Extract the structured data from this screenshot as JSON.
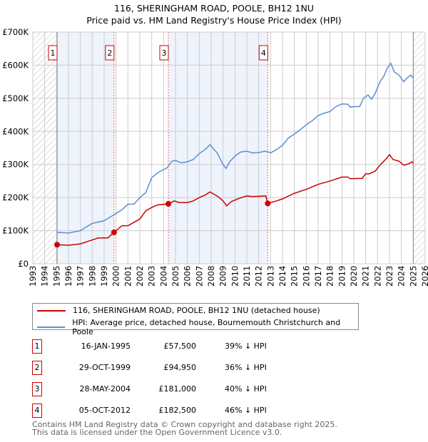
{
  "chart_data": {
    "type": "line",
    "title": "116, SHERINGHAM ROAD, POOLE, BH12 1NU",
    "subtitle": "Price paid vs. HM Land Registry's House Price Index (HPI)",
    "xlim": [
      1993,
      2026
    ],
    "ylim": [
      0,
      700000
    ],
    "x_ticks": [
      "1993",
      "1994",
      "1995",
      "1996",
      "1997",
      "1998",
      "1999",
      "2000",
      "2001",
      "2002",
      "2003",
      "2004",
      "2005",
      "2006",
      "2007",
      "2008",
      "2009",
      "2010",
      "2011",
      "2012",
      "2013",
      "2014",
      "2015",
      "2016",
      "2017",
      "2018",
      "2019",
      "2020",
      "2021",
      "2022",
      "2023",
      "2024",
      "2025",
      "2026"
    ],
    "y_ticks": [
      {
        "v": 0,
        "label": "£0"
      },
      {
        "v": 100000,
        "label": "£100K"
      },
      {
        "v": 200000,
        "label": "£200K"
      },
      {
        "v": 300000,
        "label": "£300K"
      },
      {
        "v": 400000,
        "label": "£400K"
      },
      {
        "v": 500000,
        "label": "£500K"
      },
      {
        "v": 600000,
        "label": "£600K"
      },
      {
        "v": 700000,
        "label": "£700K"
      }
    ],
    "grid": true,
    "hatched_ranges": [
      [
        1993,
        1995.04
      ],
      [
        2025.0,
        2026
      ]
    ],
    "shaded_ranges": [
      [
        1995.04,
        1999.83
      ],
      [
        2004.4,
        2012.76
      ]
    ],
    "series": [
      {
        "name": "116, SHERINGHAM ROAD, POOLE, BH12 1NU (detached house)",
        "color": "#cc0000",
        "points": [
          [
            1995.04,
            57.5
          ],
          [
            1996,
            56
          ],
          [
            1997,
            60
          ],
          [
            1998,
            72
          ],
          [
            1998.5,
            78
          ],
          [
            1999.3,
            78
          ],
          [
            1999.83,
            95
          ],
          [
            2000.5,
            115
          ],
          [
            2001,
            115
          ],
          [
            2001.5,
            125
          ],
          [
            2002,
            135
          ],
          [
            2002.5,
            160
          ],
          [
            2003,
            170
          ],
          [
            2003.5,
            178
          ],
          [
            2004.4,
            181
          ],
          [
            2004.9,
            190
          ],
          [
            2005.3,
            185
          ],
          [
            2006,
            185
          ],
          [
            2006.5,
            190
          ],
          [
            2007,
            200
          ],
          [
            2007.5,
            208
          ],
          [
            2007.9,
            217
          ],
          [
            2008.5,
            205
          ],
          [
            2009,
            190
          ],
          [
            2009.3,
            175
          ],
          [
            2009.7,
            188
          ],
          [
            2010.3,
            197
          ],
          [
            2011,
            205
          ],
          [
            2011.5,
            203
          ],
          [
            2012.6,
            205
          ],
          [
            2012.76,
            182.5
          ],
          [
            2013.5,
            190
          ],
          [
            2014,
            196
          ],
          [
            2015,
            213
          ],
          [
            2016,
            225
          ],
          [
            2017,
            240
          ],
          [
            2018,
            250
          ],
          [
            2019,
            262
          ],
          [
            2019.5,
            262
          ],
          [
            2019.7,
            257
          ],
          [
            2020.7,
            258
          ],
          [
            2021,
            272
          ],
          [
            2021.3,
            272
          ],
          [
            2021.8,
            280
          ],
          [
            2022.2,
            298
          ],
          [
            2022.8,
            320
          ],
          [
            2023.0,
            330
          ],
          [
            2023.3,
            315
          ],
          [
            2023.8,
            310
          ],
          [
            2024.2,
            298
          ],
          [
            2024.6,
            302
          ],
          [
            2024.9,
            308
          ],
          [
            2025.0,
            303
          ]
        ]
      },
      {
        "name": "HPI: Average price, detached house, Bournemouth Christchurch and Poole",
        "color": "#5b8fd4",
        "points": [
          [
            1995.04,
            95
          ],
          [
            1996,
            93
          ],
          [
            1997,
            100
          ],
          [
            1998,
            122
          ],
          [
            1999,
            130
          ],
          [
            1999.83,
            148
          ],
          [
            2000.5,
            163
          ],
          [
            2001,
            180
          ],
          [
            2001.5,
            180
          ],
          [
            2002,
            200
          ],
          [
            2002.5,
            215
          ],
          [
            2003,
            260
          ],
          [
            2003.5,
            275
          ],
          [
            2004.3,
            290
          ],
          [
            2004.7,
            310
          ],
          [
            2005,
            312
          ],
          [
            2005.5,
            305
          ],
          [
            2006,
            308
          ],
          [
            2006.5,
            315
          ],
          [
            2007,
            333
          ],
          [
            2007.5,
            345
          ],
          [
            2007.9,
            360
          ],
          [
            2008.5,
            335
          ],
          [
            2009,
            300
          ],
          [
            2009.25,
            288
          ],
          [
            2009.6,
            310
          ],
          [
            2010,
            325
          ],
          [
            2010.5,
            338
          ],
          [
            2011,
            340
          ],
          [
            2011.5,
            335
          ],
          [
            2012,
            336
          ],
          [
            2012.5,
            340
          ],
          [
            2012.8,
            338
          ],
          [
            2013,
            335
          ],
          [
            2013.5,
            345
          ],
          [
            2014,
            358
          ],
          [
            2014.5,
            380
          ],
          [
            2015,
            392
          ],
          [
            2015.5,
            405
          ],
          [
            2016,
            420
          ],
          [
            2016.5,
            432
          ],
          [
            2017,
            448
          ],
          [
            2017.5,
            455
          ],
          [
            2018,
            460
          ],
          [
            2018.5,
            475
          ],
          [
            2019,
            483
          ],
          [
            2019.5,
            482
          ],
          [
            2019.7,
            473
          ],
          [
            2020,
            475
          ],
          [
            2020.5,
            475
          ],
          [
            2020.8,
            500
          ],
          [
            2021.2,
            510
          ],
          [
            2021.5,
            497
          ],
          [
            2021.8,
            515
          ],
          [
            2022.2,
            550
          ],
          [
            2022.5,
            565
          ],
          [
            2022.8,
            590
          ],
          [
            2023.1,
            606
          ],
          [
            2023.4,
            580
          ],
          [
            2023.8,
            570
          ],
          [
            2024.2,
            550
          ],
          [
            2024.5,
            562
          ],
          [
            2024.8,
            570
          ],
          [
            2025.0,
            560
          ]
        ]
      }
    ],
    "sales": [
      {
        "label": "1",
        "x": 1995.04,
        "date": "16-JAN-1995",
        "price": 57500,
        "price_text": "£57,500",
        "hpi": "39% ↓ HPI"
      },
      {
        "label": "2",
        "x": 1999.83,
        "date": "29-OCT-1999",
        "price": 94950,
        "price_text": "£94,950",
        "hpi": "36% ↓ HPI"
      },
      {
        "label": "3",
        "x": 2004.4,
        "date": "28-MAY-2004",
        "price": 181000,
        "price_text": "£181,000",
        "hpi": "40% ↓ HPI"
      },
      {
        "label": "4",
        "x": 2012.76,
        "date": "05-OCT-2012",
        "price": 182500,
        "price_text": "£182,500",
        "hpi": "46% ↓ HPI"
      }
    ]
  },
  "footer": {
    "line1": "Contains HM Land Registry data © Crown copyright and database right 2025.",
    "line2": "This data is licensed under the Open Government Licence v3.0."
  }
}
